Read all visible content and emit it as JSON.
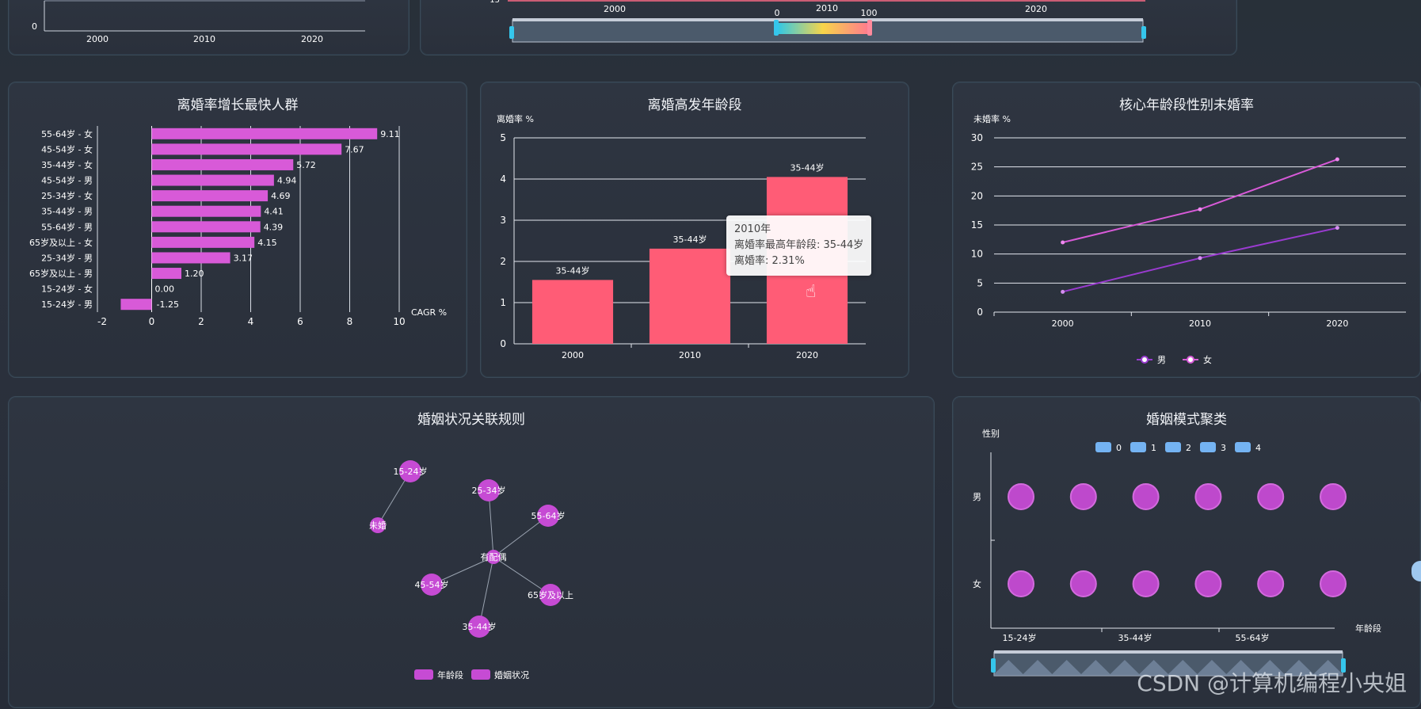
{
  "top_left": {
    "ytick0": "0",
    "years": [
      "2000",
      "2010",
      "2020"
    ]
  },
  "top_middle": {
    "ytick_partial": "15",
    "years": [
      "2000",
      "2010",
      "2020"
    ],
    "zoom_labels": [
      "0",
      "2010",
      "100"
    ]
  },
  "charts": {
    "growth": {
      "title": "离婚率增长最快人群"
    },
    "peak_age": {
      "title": "离婚高发年龄段"
    },
    "unmarried": {
      "title": "核心年龄段性别未婚率"
    },
    "rules": {
      "title": "婚姻状况关联规则"
    },
    "cluster": {
      "title": "婚姻模式聚类"
    }
  },
  "tooltip": {
    "line1": "2010年",
    "line2": "离婚率最高年龄段: 35-44岁",
    "line3": "离婚率: 2.31%"
  },
  "watermark": "CSDN @计算机编程小央姐",
  "colors": {
    "magenta": "#d85ad8",
    "coral": "#ff5c76",
    "purple": "#9a3bd0",
    "node": "#c64bd4",
    "legend_blue": "#74b3f2"
  },
  "chart_data": [
    {
      "type": "bar",
      "orientation": "horizontal",
      "title": "离婚率增长最快人群",
      "xlabel": "CAGR %",
      "xlim": [
        -2,
        10
      ],
      "xticks": [
        "-2",
        "0",
        "2",
        "4",
        "6",
        "8",
        "10"
      ],
      "categories": [
        "55-64岁 - 女",
        "45-54岁 - 女",
        "35-44岁 - 女",
        "45-54岁 - 男",
        "25-34岁 - 女",
        "35-44岁 - 男",
        "55-64岁 - 男",
        "65岁及以上 - 女",
        "25-34岁 - 男",
        "65岁及以上 - 男",
        "15-24岁 - 女",
        "15-24岁 - 男"
      ],
      "values": [
        9.11,
        7.67,
        5.72,
        4.94,
        4.69,
        4.41,
        4.39,
        4.15,
        3.17,
        1.2,
        0.0,
        -1.25
      ],
      "value_labels": [
        "9.11",
        "7.67",
        "5.72",
        "4.94",
        "4.69",
        "4.41",
        "4.39",
        "4.15",
        "3.17",
        "1.20",
        "0.00",
        "-1.25"
      ]
    },
    {
      "type": "bar",
      "title": "离婚高发年龄段",
      "ylabel": "离婚率 %",
      "ylim": [
        0,
        5
      ],
      "yticks": [
        "0",
        "1",
        "2",
        "3",
        "4",
        "5"
      ],
      "categories": [
        "2000",
        "2010",
        "2020"
      ],
      "values": [
        1.55,
        2.31,
        4.05
      ],
      "bar_labels": [
        "35-44岁",
        "35-44岁",
        "35-44岁"
      ]
    },
    {
      "type": "line",
      "title": "核心年龄段性别未婚率",
      "ylabel": "未婚率 %",
      "ylim": [
        0,
        30
      ],
      "yticks": [
        "0",
        "5",
        "10",
        "15",
        "20",
        "25",
        "30"
      ],
      "categories": [
        "2000",
        "2010",
        "2020"
      ],
      "series": [
        {
          "name": "男",
          "values": [
            3.5,
            9.3,
            14.5
          ]
        },
        {
          "name": "女",
          "values": [
            12.0,
            17.7,
            26.3
          ]
        }
      ],
      "legend": "bottom"
    },
    {
      "type": "graph",
      "title": "婚姻状况关联规则",
      "nodes": [
        {
          "label": "15-24岁",
          "category": "年龄段"
        },
        {
          "label": "未婚",
          "category": "婚姻状况"
        },
        {
          "label": "25-34岁",
          "category": "年龄段"
        },
        {
          "label": "55-64岁",
          "category": "年龄段"
        },
        {
          "label": "有配偶",
          "category": "婚姻状况"
        },
        {
          "label": "45-54岁",
          "category": "年龄段"
        },
        {
          "label": "65岁及以上",
          "category": "年龄段"
        },
        {
          "label": "35-44岁",
          "category": "年龄段"
        }
      ],
      "links": [
        [
          "15-24岁",
          "未婚"
        ],
        [
          "25-34岁",
          "有配偶"
        ],
        [
          "55-64岁",
          "有配偶"
        ],
        [
          "45-54岁",
          "有配偶"
        ],
        [
          "65岁及以上",
          "有配偶"
        ],
        [
          "35-44岁",
          "有配偶"
        ]
      ],
      "legend": [
        "年龄段",
        "婚姻状况"
      ],
      "legend_position": "bottom"
    },
    {
      "type": "scatter",
      "title": "婚姻模式聚类",
      "xlabel": "年龄段",
      "ylabel": "性别",
      "x_ticklabels": [
        "15-24岁",
        "35-44岁",
        "55-64岁"
      ],
      "y_categories": [
        "男",
        "女"
      ],
      "legend": [
        "0",
        "1",
        "2",
        "3",
        "4"
      ],
      "points_per_row": 6
    }
  ]
}
